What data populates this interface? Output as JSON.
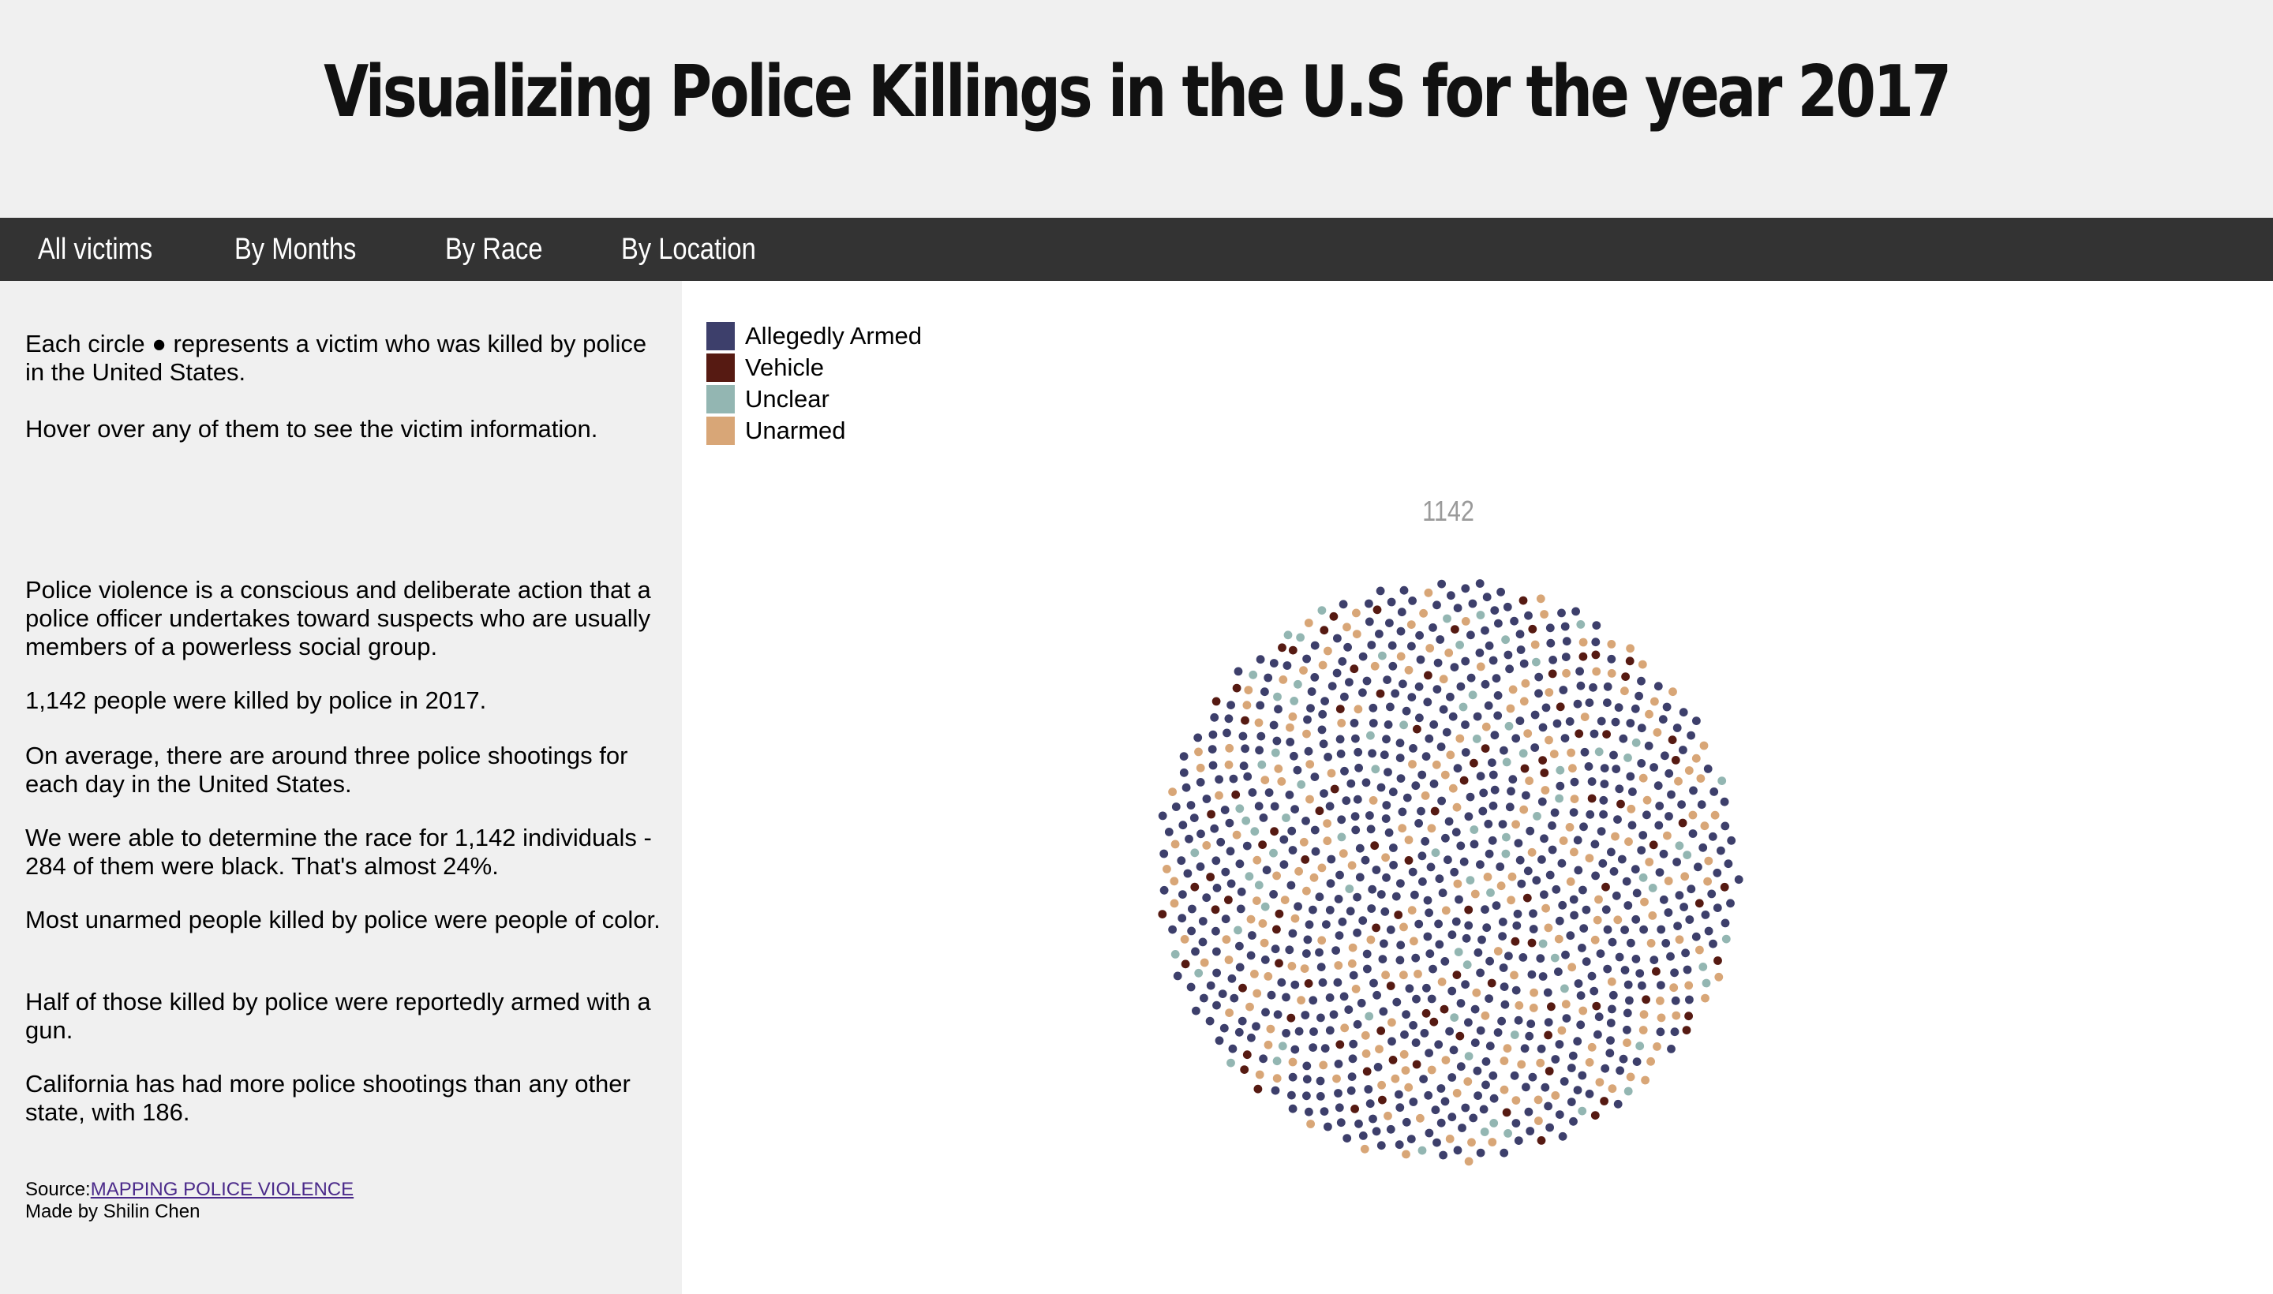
{
  "title": "Visualizing Police Killings in the U.S for the year 2017",
  "nav": {
    "items": [
      "All victims",
      "By Months",
      "By Race",
      "By Location"
    ]
  },
  "sidebar": {
    "intro": "Each circle ● represents a victim who was killed by police in the United States.",
    "hover_hint": "Hover over any of them to see the victim information.",
    "facts": [
      "Police violence is a conscious and deliberate action that a police officer undertakes toward suspects who are usually members of a powerless social group.",
      "1,142 people were killed by police in 2017.",
      "On average, there are around three police shootings for each day in the United States.",
      "We were able to determine the race for 1,142 individuals - 284 of them were black. That's almost 24%.",
      "Most unarmed people killed by police were people of color.",
      "Half of those killed by police were reportedly armed with a gun.",
      "California has had more police shootings than any other state, with 186."
    ],
    "source_prefix": "Source:",
    "source_link": "MAPPING POLICE VIOLENCE",
    "credit": "Made by Shilin Chen"
  },
  "chart_data": {
    "type": "scatter",
    "layout": "packed-circle",
    "title": "1142",
    "total": 1142,
    "legend": [
      {
        "name": "Allegedly Armed",
        "color": "#3d3f6b"
      },
      {
        "name": "Vehicle",
        "color": "#561a12"
      },
      {
        "name": "Unclear",
        "color": "#93b6b2"
      },
      {
        "name": "Unarmed",
        "color": "#d8a677"
      }
    ],
    "legend_position": "top-left",
    "grid": false
  }
}
